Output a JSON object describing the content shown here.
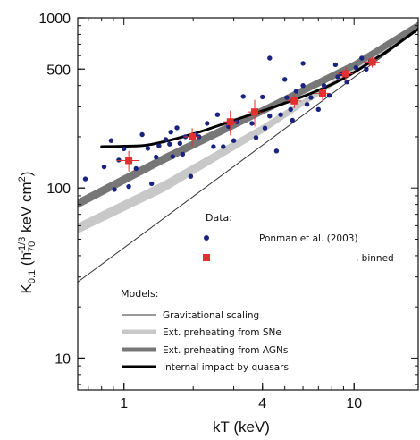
{
  "chart_data": {
    "type": "scatter",
    "xlabel": "kT (keV)",
    "ylabel_main": "K",
    "ylabel_sub": "0.1",
    "ylabel_paren_open": " (h",
    "ylabel_h_sub": "70",
    "ylabel_h_sup": "-1/3",
    "ylabel_unit": " keV cm",
    "ylabel_unit_sup": "2",
    "ylabel_close": ")",
    "x_scale": "log",
    "y_scale": "log",
    "xlim": [
      0.63,
      19
    ],
    "ylim": [
      6.5,
      1000
    ],
    "x_ticks": [
      {
        "value": 1,
        "label": "1"
      },
      {
        "value": 4,
        "label": "4"
      },
      {
        "value": 10,
        "label": "10"
      }
    ],
    "y_ticks": [
      {
        "value": 10,
        "label": "10"
      },
      {
        "value": 100,
        "label": "100"
      },
      {
        "value": 500,
        "label": "500"
      },
      {
        "value": 1000,
        "label": "1000"
      }
    ],
    "data_legend_title": "Data:",
    "models_legend_title": "Models:",
    "series": [
      {
        "name": "Ponman et al. (2003)",
        "kind": "points",
        "color": "#1a237e",
        "points": [
          [
            0.68,
            113
          ],
          [
            0.82,
            133
          ],
          [
            0.88,
            190
          ],
          [
            0.91,
            98
          ],
          [
            0.95,
            146
          ],
          [
            1.0,
            170
          ],
          [
            1.05,
            102
          ],
          [
            1.13,
            130
          ],
          [
            1.2,
            206
          ],
          [
            1.27,
            171
          ],
          [
            1.32,
            106
          ],
          [
            1.38,
            152
          ],
          [
            1.42,
            177
          ],
          [
            1.52,
            193
          ],
          [
            1.6,
            213
          ],
          [
            1.58,
            181
          ],
          [
            1.63,
            153
          ],
          [
            1.7,
            226
          ],
          [
            1.75,
            183
          ],
          [
            1.8,
            158
          ],
          [
            1.85,
            200
          ],
          [
            1.95,
            117
          ],
          [
            2.05,
            206
          ],
          [
            2.12,
            200
          ],
          [
            2.3,
            240
          ],
          [
            2.45,
            175
          ],
          [
            2.55,
            270
          ],
          [
            2.7,
            175
          ],
          [
            2.85,
            230
          ],
          [
            3.0,
            190
          ],
          [
            3.1,
            245
          ],
          [
            3.3,
            345
          ],
          [
            3.6,
            240
          ],
          [
            3.75,
            198
          ],
          [
            4.0,
            343
          ],
          [
            4.1,
            225
          ],
          [
            4.3,
            265
          ],
          [
            4.6,
            165
          ],
          [
            4.8,
            270
          ],
          [
            5.0,
            435
          ],
          [
            5.1,
            340
          ],
          [
            5.4,
            250
          ],
          [
            5.6,
            370
          ],
          [
            6.0,
            400
          ],
          [
            6.25,
            310
          ],
          [
            6.5,
            340
          ],
          [
            7.0,
            290
          ],
          [
            7.4,
            400
          ],
          [
            7.8,
            350
          ],
          [
            8.3,
            530
          ],
          [
            8.5,
            450
          ],
          [
            8.8,
            470
          ],
          [
            9.3,
            420
          ],
          [
            10.2,
            510
          ],
          [
            10.8,
            580
          ],
          [
            11.3,
            500
          ],
          [
            11.8,
            560
          ],
          [
            4.3,
            580
          ],
          [
            6.0,
            540
          ],
          [
            5.3,
            290
          ]
        ]
      },
      {
        "name": ", binned",
        "kind": "binned",
        "color": "#e03030",
        "points": [
          [
            1.05,
            145
          ],
          [
            1.98,
            200
          ],
          [
            2.9,
            245
          ],
          [
            3.7,
            280
          ],
          [
            5.5,
            325
          ],
          [
            7.3,
            360
          ],
          [
            9.2,
            470
          ],
          [
            12.0,
            550
          ]
        ],
        "xerr": [
          0.12,
          0.15,
          0.2,
          0.25,
          0.4,
          0.5,
          0.7,
          0.9
        ],
        "yerr": [
          20,
          25,
          40,
          50,
          30,
          35,
          45,
          40
        ]
      },
      {
        "name": "Gravitational scaling",
        "kind": "line",
        "color": "#333333",
        "width": 1,
        "points": [
          [
            0.63,
            28
          ],
          [
            19,
            850
          ]
        ]
      },
      {
        "name": "Ext. preheating from SNe",
        "kind": "band",
        "color": "#c8c8c8",
        "lower": [
          [
            0.63,
            54
          ],
          [
            1.5,
            95
          ],
          [
            4,
            210
          ],
          [
            10,
            480
          ],
          [
            19,
            880
          ]
        ],
        "upper": [
          [
            0.63,
            62
          ],
          [
            1.5,
            110
          ],
          [
            4,
            235
          ],
          [
            10,
            510
          ],
          [
            19,
            920
          ]
        ]
      },
      {
        "name": "Ext. preheating from AGNs",
        "kind": "band",
        "color": "#777777",
        "lower": [
          [
            0.63,
            76
          ],
          [
            1.5,
            140
          ],
          [
            4,
            270
          ],
          [
            10,
            500
          ],
          [
            19,
            860
          ]
        ],
        "upper": [
          [
            0.63,
            86
          ],
          [
            1.5,
            158
          ],
          [
            4,
            300
          ],
          [
            10,
            555
          ],
          [
            19,
            950
          ]
        ]
      },
      {
        "name": "Internal impact by quasars",
        "kind": "line",
        "color": "#000000",
        "width": 3,
        "points": [
          [
            0.8,
            175
          ],
          [
            1.0,
            176
          ],
          [
            1.3,
            180
          ],
          [
            2.0,
            208
          ],
          [
            3.0,
            250
          ],
          [
            4.5,
            300
          ],
          [
            6.5,
            360
          ],
          [
            9.0,
            440
          ],
          [
            13,
            600
          ],
          [
            19,
            860
          ]
        ]
      }
    ]
  }
}
